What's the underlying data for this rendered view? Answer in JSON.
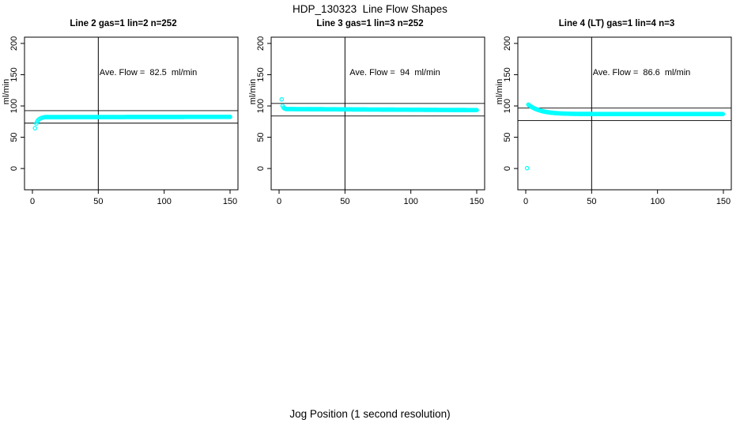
{
  "figure": {
    "title": "HDP_130323  Line Flow Shapes",
    "xlabel": "Jog Position (1 second resolution)",
    "background": "#ffffff",
    "axis_color": "#000000",
    "point_color": "#00ffff"
  },
  "chart_data": [
    {
      "type": "scatter",
      "title": "Line 2 gas=1 lin=2 n=252",
      "annotation": "Ave. Flow =  82.5  ml/min",
      "ave_flow_ml_min": 82.5,
      "n": 252,
      "ylabel": "ml/min",
      "x_ticks": [
        0,
        50,
        100,
        150
      ],
      "y_ticks": [
        0,
        50,
        100,
        150,
        200
      ],
      "xlim": [
        -6,
        156
      ],
      "ylim": [
        -34,
        210
      ],
      "vline_x": 50,
      "hlines_y": [
        92.5,
        72.5
      ],
      "series": {
        "name": "flow",
        "marker": "open-circle",
        "color": "#00ffff",
        "points": [
          [
            2,
            64.5
          ],
          [
            3,
            72
          ],
          [
            3.6,
            75
          ],
          [
            4.2,
            77
          ],
          [
            5,
            78.7
          ],
          [
            6,
            80
          ],
          [
            7,
            80.9
          ],
          [
            8,
            81.5
          ],
          [
            9,
            81.9
          ]
        ],
        "segments": [
          {
            "form": "linear",
            "x0": 9.6,
            "x1": 150,
            "step": 0.6,
            "y0": 82.2,
            "y1": 82.6
          }
        ]
      }
    },
    {
      "type": "scatter",
      "title": "Line 3 gas=1 lin=3 n=252",
      "annotation": "Ave. Flow =  94  ml/min",
      "ave_flow_ml_min": 94,
      "n": 252,
      "ylabel": "ml/min",
      "x_ticks": [
        0,
        50,
        100,
        150
      ],
      "y_ticks": [
        0,
        50,
        100,
        150,
        200
      ],
      "xlim": [
        -6,
        156
      ],
      "ylim": [
        -34,
        210
      ],
      "vline_x": 50,
      "hlines_y": [
        104,
        84
      ],
      "series": {
        "name": "flow",
        "marker": "open-circle",
        "color": "#00ffff",
        "points": [
          [
            2,
            110.5
          ],
          [
            2.7,
            100
          ],
          [
            3.4,
            97.3
          ],
          [
            4.1,
            96.1
          ],
          [
            4.8,
            95.5
          ]
        ],
        "segments": [
          {
            "form": "linear",
            "x0": 5.4,
            "x1": 150,
            "step": 0.6,
            "y0": 95.1,
            "y1": 93.4
          }
        ]
      }
    },
    {
      "type": "scatter",
      "title": "Line 4 (LT) gas=1 lin=4 n=3",
      "annotation": "Ave. Flow =  86.6  ml/min",
      "ave_flow_ml_min": 86.6,
      "n": 3,
      "ylabel": "ml/min",
      "x_ticks": [
        0,
        50,
        100,
        150
      ],
      "y_ticks": [
        0,
        50,
        100,
        150,
        200
      ],
      "xlim": [
        -6,
        156
      ],
      "ylim": [
        -34,
        210
      ],
      "vline_x": 50,
      "hlines_y": [
        96.6,
        76.6
      ],
      "series": {
        "name": "flow",
        "marker": "open-circle",
        "color": "#00ffff",
        "points": [
          [
            1,
            0.5
          ]
        ],
        "segments": [
          {
            "form": "decay",
            "x0": 2,
            "x1": 150,
            "step": 0.6,
            "base": 87.1,
            "amp": 15,
            "tau": 9
          }
        ]
      }
    }
  ]
}
